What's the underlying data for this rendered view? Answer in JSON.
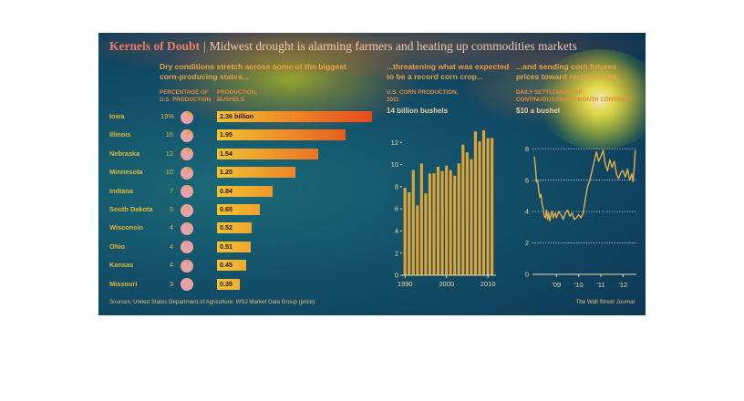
{
  "header": {
    "title": "Kernels of Doubt",
    "separator": "|",
    "subtitle": "Midwest drought is alarming farmers and heating up commodities markets"
  },
  "states_panel": {
    "heading_line1": "Dry conditions stretch across some of the biggest",
    "heading_line2": "corn-producing states...",
    "col_pct_line1": "PERCENTAGE OF",
    "col_pct_line2": "U.S. PRODUCTION",
    "col_prod_line1": "PRODUCTION,",
    "col_prod_line2": "BUSHELS"
  },
  "production_panel": {
    "heading_line1": "...threatening what was expected",
    "heading_line2": "to be a record corn crop...",
    "sub_line1": "U.S. CORN PRODUCTION,",
    "sub_line2": "2011",
    "unit_label": "14 billion bushels"
  },
  "price_panel": {
    "heading_line1": "...and sending corn futures",
    "heading_line2": "prices toward record levels",
    "sub_line1": "DAILY SETTLEMENT OF",
    "sub_line2": "CONTINUOUS FRONT-MONTH CONTRACT",
    "unit_label": "$10 a bushel"
  },
  "footer": {
    "sources": "Sources: United States Department of Agriculture; WSJ Market Data Group (price)",
    "credit": "The Wall Street Journal"
  },
  "colors": {
    "heading": "#e8a244",
    "state_label": "#e0b838",
    "bar_left": "#f2c232",
    "bar_right": "#e64a1e",
    "column": "#e0a336",
    "price_line": "#e2b04a",
    "pie_base": "#e6a3a6",
    "pie_slice": "#e8a23a"
  },
  "chart_data": [
    {
      "type": "bar",
      "orientation": "horizontal",
      "categories": [
        "Iowa",
        "Illinois",
        "Nebraska",
        "Minnesota",
        "Indiana",
        "South Dakota",
        "Wisconsin",
        "Ohio",
        "Kansas",
        "Missouri"
      ],
      "pct_labels": [
        "19%",
        "16",
        "12",
        "10",
        "7",
        "5",
        "4",
        "4",
        "4",
        "3"
      ],
      "pct_values": [
        19,
        16,
        12,
        10,
        7,
        5,
        4,
        4,
        4,
        3
      ],
      "value_labels": [
        "2.36 billion",
        "1.95",
        "1.54",
        "1.20",
        "0.84",
        "0.65",
        "0.52",
        "0.51",
        "0.45",
        "0.35"
      ],
      "values": [
        2.36,
        1.95,
        1.54,
        1.2,
        0.84,
        0.65,
        0.52,
        0.51,
        0.45,
        0.35
      ],
      "xlim": [
        0,
        2.36
      ]
    },
    {
      "type": "bar",
      "x": [
        1990,
        1991,
        1992,
        1993,
        1994,
        1995,
        1996,
        1997,
        1998,
        1999,
        2000,
        2001,
        2002,
        2003,
        2004,
        2005,
        2006,
        2007,
        2008,
        2009,
        2010,
        2011
      ],
      "values": [
        7.9,
        7.5,
        9.5,
        6.3,
        10.1,
        7.4,
        9.2,
        9.2,
        9.8,
        9.4,
        9.9,
        9.5,
        9.0,
        10.1,
        11.8,
        11.1,
        10.5,
        13.0,
        12.1,
        13.1,
        12.4,
        12.4
      ],
      "ylim": [
        0,
        14
      ],
      "yticks": [
        0,
        2,
        4,
        6,
        8,
        10,
        12
      ],
      "ytick_labels": [
        "0",
        "2",
        "4",
        "6",
        "8",
        "10",
        "12"
      ],
      "xtick_labels": [
        "1990",
        "2000",
        "2010"
      ],
      "grid": false
    },
    {
      "type": "line",
      "x": [
        2008.0,
        2008.05,
        2008.1,
        2008.15,
        2008.2,
        2008.25,
        2008.3,
        2008.35,
        2008.4,
        2008.45,
        2008.5,
        2008.55,
        2008.6,
        2008.65,
        2008.7,
        2008.75,
        2008.8,
        2008.85,
        2008.9,
        2008.95,
        2009.0,
        2009.1,
        2009.2,
        2009.3,
        2009.4,
        2009.5,
        2009.6,
        2009.7,
        2009.8,
        2009.9,
        2010.0,
        2010.1,
        2010.2,
        2010.3,
        2010.4,
        2010.5,
        2010.6,
        2010.7,
        2010.8,
        2010.9,
        2011.0,
        2011.1,
        2011.2,
        2011.3,
        2011.4,
        2011.5,
        2011.6,
        2011.7,
        2011.8,
        2011.9,
        2012.0,
        2012.1,
        2012.2,
        2012.3,
        2012.4,
        2012.45,
        2012.5,
        2012.55
      ],
      "y": [
        7.5,
        6.9,
        5.9,
        6.0,
        5.3,
        4.9,
        5.1,
        4.5,
        4.2,
        3.7,
        3.6,
        4.1,
        3.5,
        3.9,
        3.4,
        3.8,
        4.0,
        3.6,
        3.8,
        3.9,
        3.6,
        4.0,
        3.8,
        3.5,
        3.9,
        4.1,
        3.7,
        3.9,
        3.5,
        3.6,
        3.8,
        3.6,
        3.9,
        4.8,
        5.6,
        6.0,
        6.6,
        7.2,
        7.8,
        7.2,
        7.5,
        7.9,
        7.0,
        6.6,
        7.3,
        6.8,
        7.2,
        6.4,
        6.1,
        6.5,
        6.6,
        6.2,
        6.7,
        6.0,
        6.4,
        5.9,
        6.8,
        7.9
      ],
      "ylim": [
        0,
        9
      ],
      "yticks": [
        0,
        2,
        4,
        6,
        8
      ],
      "ytick_labels": [
        "0",
        "2",
        "4",
        "6",
        "8"
      ],
      "xticks": [
        2009,
        2010,
        2011,
        2012
      ],
      "xtick_labels": [
        "'09",
        "'10",
        "'11",
        "'12"
      ],
      "grid": true
    }
  ]
}
